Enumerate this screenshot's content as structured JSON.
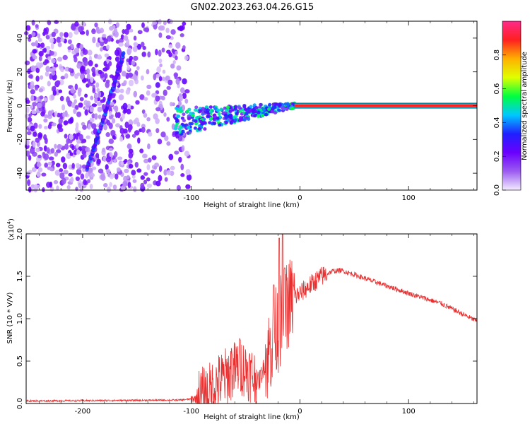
{
  "figure": {
    "title": "GN02.2023.263.04.26.G15"
  },
  "chart_data": [
    {
      "type": "heatmap",
      "name": "spectrogram",
      "xlabel": "Height of straight line (km)",
      "ylabel": "Frequency (Hz)",
      "xlim": [
        -252,
        163
      ],
      "ylim": [
        -50,
        50
      ],
      "xticks": [
        -200,
        -100,
        0,
        100
      ],
      "xtick_labels": [
        "-200",
        "-100",
        "0",
        "100"
      ],
      "yticks": [
        -40,
        -20,
        0,
        20,
        40
      ],
      "ytick_labels": [
        "-40",
        "-20",
        "0",
        "20",
        "40"
      ],
      "features": [
        {
          "name": "diagonal-streak",
          "x_start": -196,
          "x_end": -162,
          "freq_start": -38,
          "freq_end": 31,
          "amplitude": 0.3
        },
        {
          "name": "converging-band",
          "x_start": -115,
          "x_end": -5,
          "freq_start": -10,
          "freq_end": 0,
          "amplitude": 0.35
        },
        {
          "name": "zero-frequency-line",
          "x_start": -5,
          "x_end": 163,
          "freq": 0,
          "amplitude": 0.9
        }
      ],
      "colorbar": {
        "label": "Normalized spectral amplitude",
        "range": [
          0,
          1
        ],
        "ticks": [
          0.0,
          0.2,
          0.4,
          0.6,
          0.8
        ],
        "tick_labels": [
          "0.0",
          "0.2",
          "0.4",
          "0.6",
          "0.8"
        ],
        "colormap": [
          "#f4ecff",
          "#9b5cf0",
          "#6a00ff",
          "#2020ff",
          "#00c8ff",
          "#00ff40",
          "#e0ff00",
          "#ffb000",
          "#ff2020",
          "#ff2a8a"
        ]
      }
    },
    {
      "type": "line",
      "name": "snr",
      "xlabel": "Height of straight line (km)",
      "ylabel": "SNR (10 * V/V)",
      "y_exponent_label": "(x10",
      "y_exponent_power": "4",
      "y_exponent_close": ")",
      "xlim": [
        -252,
        163
      ],
      "ylim": [
        0,
        2.0
      ],
      "xticks": [
        -200,
        -100,
        0,
        100
      ],
      "xtick_labels": [
        "-200",
        "-100",
        "0",
        "100"
      ],
      "yticks": [
        0.0,
        0.5,
        1.0,
        1.5,
        2.0
      ],
      "ytick_labels": [
        "0.0",
        "0.5",
        "1.0",
        "1.5",
        "2.0"
      ],
      "line_color": "#e83030",
      "anchors": {
        "x": [
          -252,
          -110,
          -95,
          -85,
          -75,
          -65,
          -55,
          -45,
          -38,
          -30,
          -22,
          -15,
          -10,
          0,
          10,
          20,
          30,
          38,
          50,
          70,
          100,
          130,
          163
        ],
        "y": [
          0.03,
          0.04,
          0.06,
          0.12,
          0.25,
          0.35,
          0.45,
          0.35,
          0.25,
          0.55,
          0.85,
          1.05,
          1.2,
          1.3,
          1.4,
          1.5,
          1.56,
          1.57,
          1.52,
          1.43,
          1.3,
          1.18,
          0.97
        ]
      },
      "peaks": [
        {
          "x": -16,
          "y": 2.0
        },
        {
          "x": -19,
          "y": 1.95
        },
        {
          "x": -14,
          "y": 1.6
        },
        {
          "x": -24,
          "y": 1.4
        },
        {
          "x": -55,
          "y": 0.75
        },
        {
          "x": -63,
          "y": 0.65
        }
      ]
    }
  ]
}
